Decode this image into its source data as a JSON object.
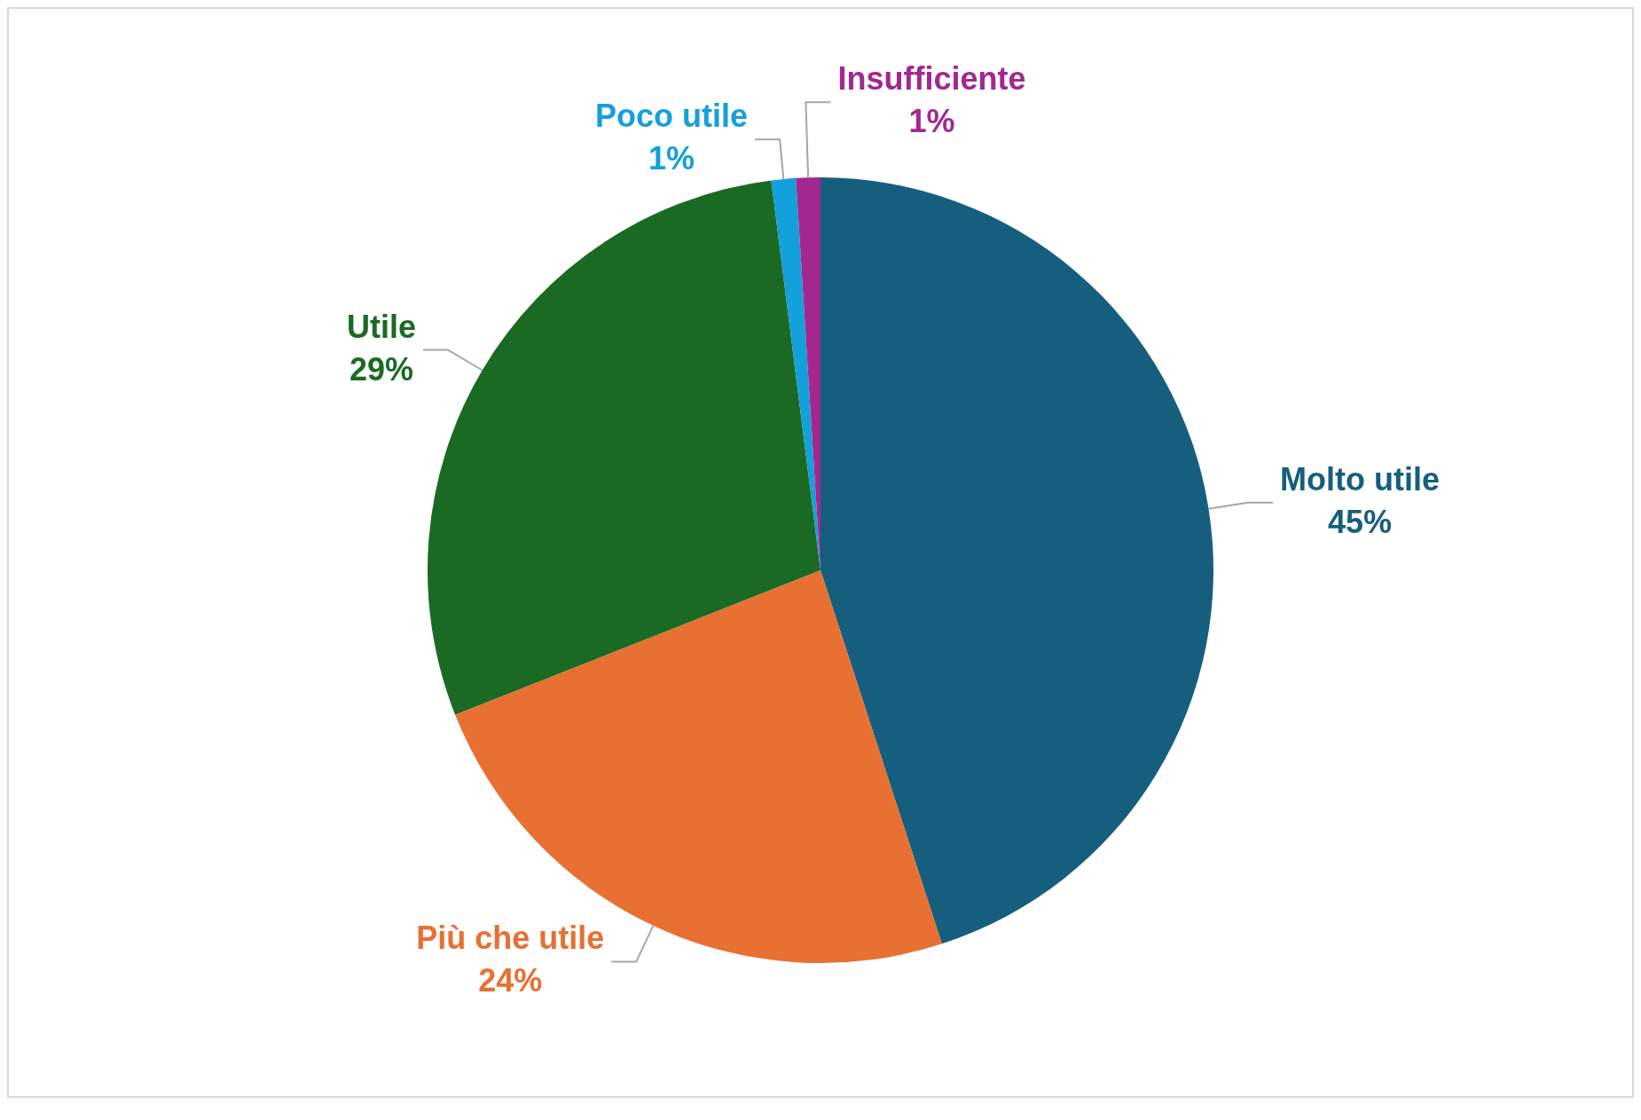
{
  "chart_data": {
    "type": "pie",
    "categories": [
      "Molto utile",
      "Più che utile",
      "Utile",
      "Poco utile",
      "Insufficiente"
    ],
    "values": [
      45,
      24,
      29,
      1,
      1
    ],
    "colors": [
      "#165e7e",
      "#e87032",
      "#1b6a24",
      "#14a0da",
      "#a2288f"
    ],
    "value_labels": [
      "45%",
      "24%",
      "29%",
      "1%",
      "1%"
    ]
  }
}
